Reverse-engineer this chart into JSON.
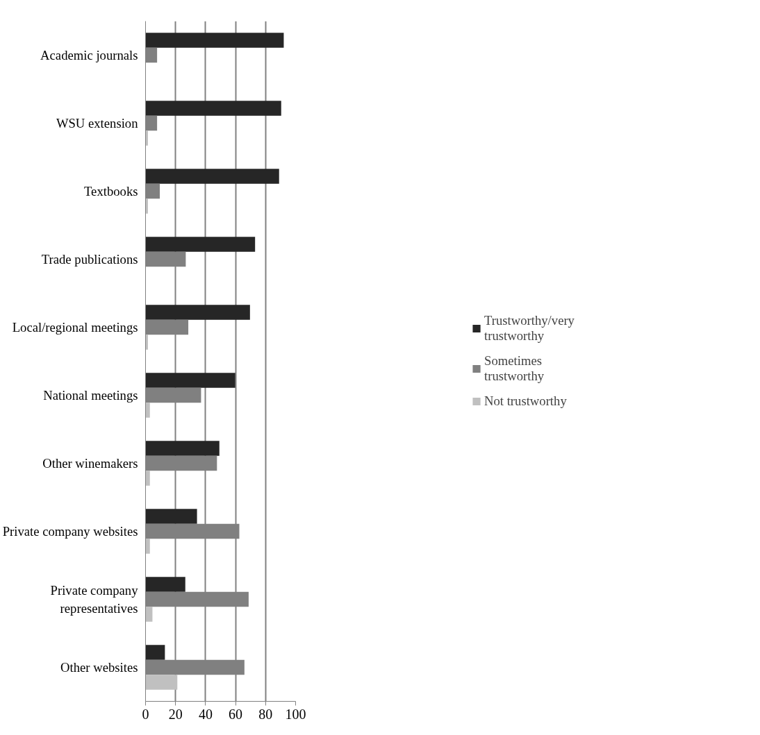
{
  "chart_data": {
    "type": "bar",
    "orientation": "horizontal",
    "categories": [
      "Academic journals",
      "WSU extension",
      "Textbooks",
      "Trade publications",
      "Local/regional meetings",
      "National meetings",
      "Other winemakers",
      "Private company websites",
      "Private company\nrepresentatives",
      "Other websites"
    ],
    "series": [
      {
        "name": "Trustworthy/very trustworthy",
        "color": "#262626",
        "values": [
          92.1,
          90.4,
          89,
          73,
          69.6,
          59.8,
          49.2,
          34.3,
          26.5,
          12.9
        ]
      },
      {
        "name": "Sometimes trustworthy",
        "color": "#808080",
        "values": [
          7.7,
          7.7,
          9.5,
          26.8,
          28.5,
          37,
          47.6,
          62.5,
          68.7,
          65.9
        ]
      },
      {
        "name": "Not trustworthy",
        "color": "#c0c0c0",
        "values": [
          0,
          1.6,
          1.6,
          0,
          1.6,
          2.9,
          2.9,
          2.9,
          4.6,
          21.2
        ]
      }
    ],
    "xlim": [
      0,
      100
    ],
    "xticks": [
      0,
      20,
      40,
      60,
      80,
      100
    ],
    "grid": "x",
    "legend": "right"
  }
}
